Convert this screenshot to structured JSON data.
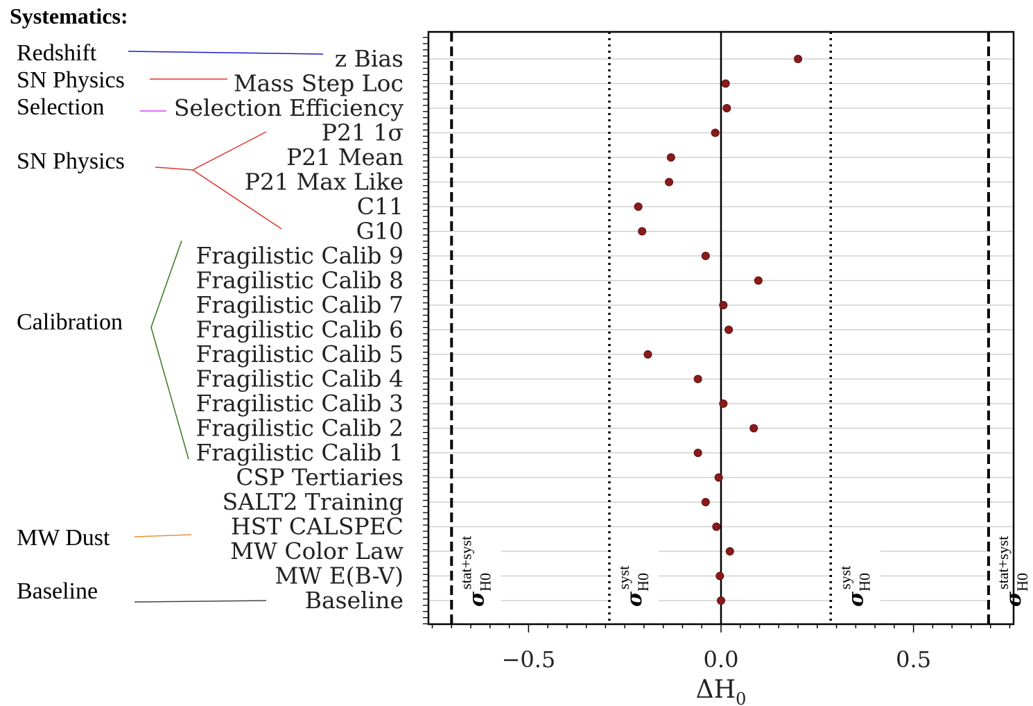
{
  "header": "Systematics:",
  "chart_data": {
    "type": "scatter",
    "xlabel": "ΔH",
    "xlabel_sub": "0",
    "xlim": [
      -0.76,
      0.76
    ],
    "xticks": [
      -0.5,
      0.0,
      0.5
    ],
    "xtick_labels": [
      "−0.5",
      "0.0",
      "0.5"
    ],
    "grid": "horizontal",
    "categories": [
      {
        "label": "z Bias",
        "value": 0.2
      },
      {
        "label": "Mass Step Loc",
        "value": 0.012
      },
      {
        "label": "Selection Efficiency",
        "value": 0.015
      },
      {
        "label": "P21 1σ",
        "value": -0.015
      },
      {
        "label": "P21 Mean",
        "value": -0.13
      },
      {
        "label": "P21 Max Like",
        "value": -0.135
      },
      {
        "label": "C11",
        "value": -0.215
      },
      {
        "label": "G10",
        "value": -0.205
      },
      {
        "label": "Fragilistic Calib 9",
        "value": -0.04
      },
      {
        "label": "Fragilistic Calib 8",
        "value": 0.097
      },
      {
        "label": "Fragilistic Calib 7",
        "value": 0.006
      },
      {
        "label": "Fragilistic Calib 6",
        "value": 0.02
      },
      {
        "label": "Fragilistic Calib 5",
        "value": -0.19
      },
      {
        "label": "Fragilistic Calib 4",
        "value": -0.06
      },
      {
        "label": "Fragilistic Calib 3",
        "value": 0.006
      },
      {
        "label": "Fragilistic Calib 2",
        "value": 0.085
      },
      {
        "label": "Fragilistic Calib 1",
        "value": -0.06
      },
      {
        "label": "CSP Tertiaries",
        "value": -0.006
      },
      {
        "label": "SALT2 Training",
        "value": -0.04
      },
      {
        "label": "HST CALSPEC",
        "value": -0.012
      },
      {
        "label": "MW Color Law",
        "value": 0.023
      },
      {
        "label": "MW E(B-V)",
        "value": -0.003
      },
      {
        "label": "Baseline",
        "value": 0.0
      }
    ],
    "reference_lines": [
      {
        "x": -0.7,
        "style": "dashed",
        "sigma": "σ",
        "sup": "stat+syst",
        "sub": "H0"
      },
      {
        "x": -0.29,
        "style": "dotted",
        "sigma": "σ",
        "sup": "syst",
        "sub": "H0"
      },
      {
        "x": 0.0,
        "style": "solid"
      },
      {
        "x": 0.285,
        "style": "dotted",
        "sigma": "σ",
        "sup": "syst",
        "sub": "H0"
      },
      {
        "x": 0.695,
        "style": "dashed",
        "sigma": "σ",
        "sup": "stat+syst",
        "sub": "H0"
      }
    ],
    "marker_color": "#8b1a1a"
  },
  "groups": [
    {
      "label": "Redshift",
      "color": "#1a1acc"
    },
    {
      "label": "SN Physics",
      "color": "#e0342a"
    },
    {
      "label": "Selection",
      "color": "#d23ff0"
    },
    {
      "label": "SN Physics",
      "color": "#e0342a"
    },
    {
      "label": "Calibration",
      "color": "#6aa84f"
    },
    {
      "label": "MW Dust",
      "color": "#e6b84a"
    },
    {
      "label": "Baseline",
      "color": "#000000"
    }
  ]
}
